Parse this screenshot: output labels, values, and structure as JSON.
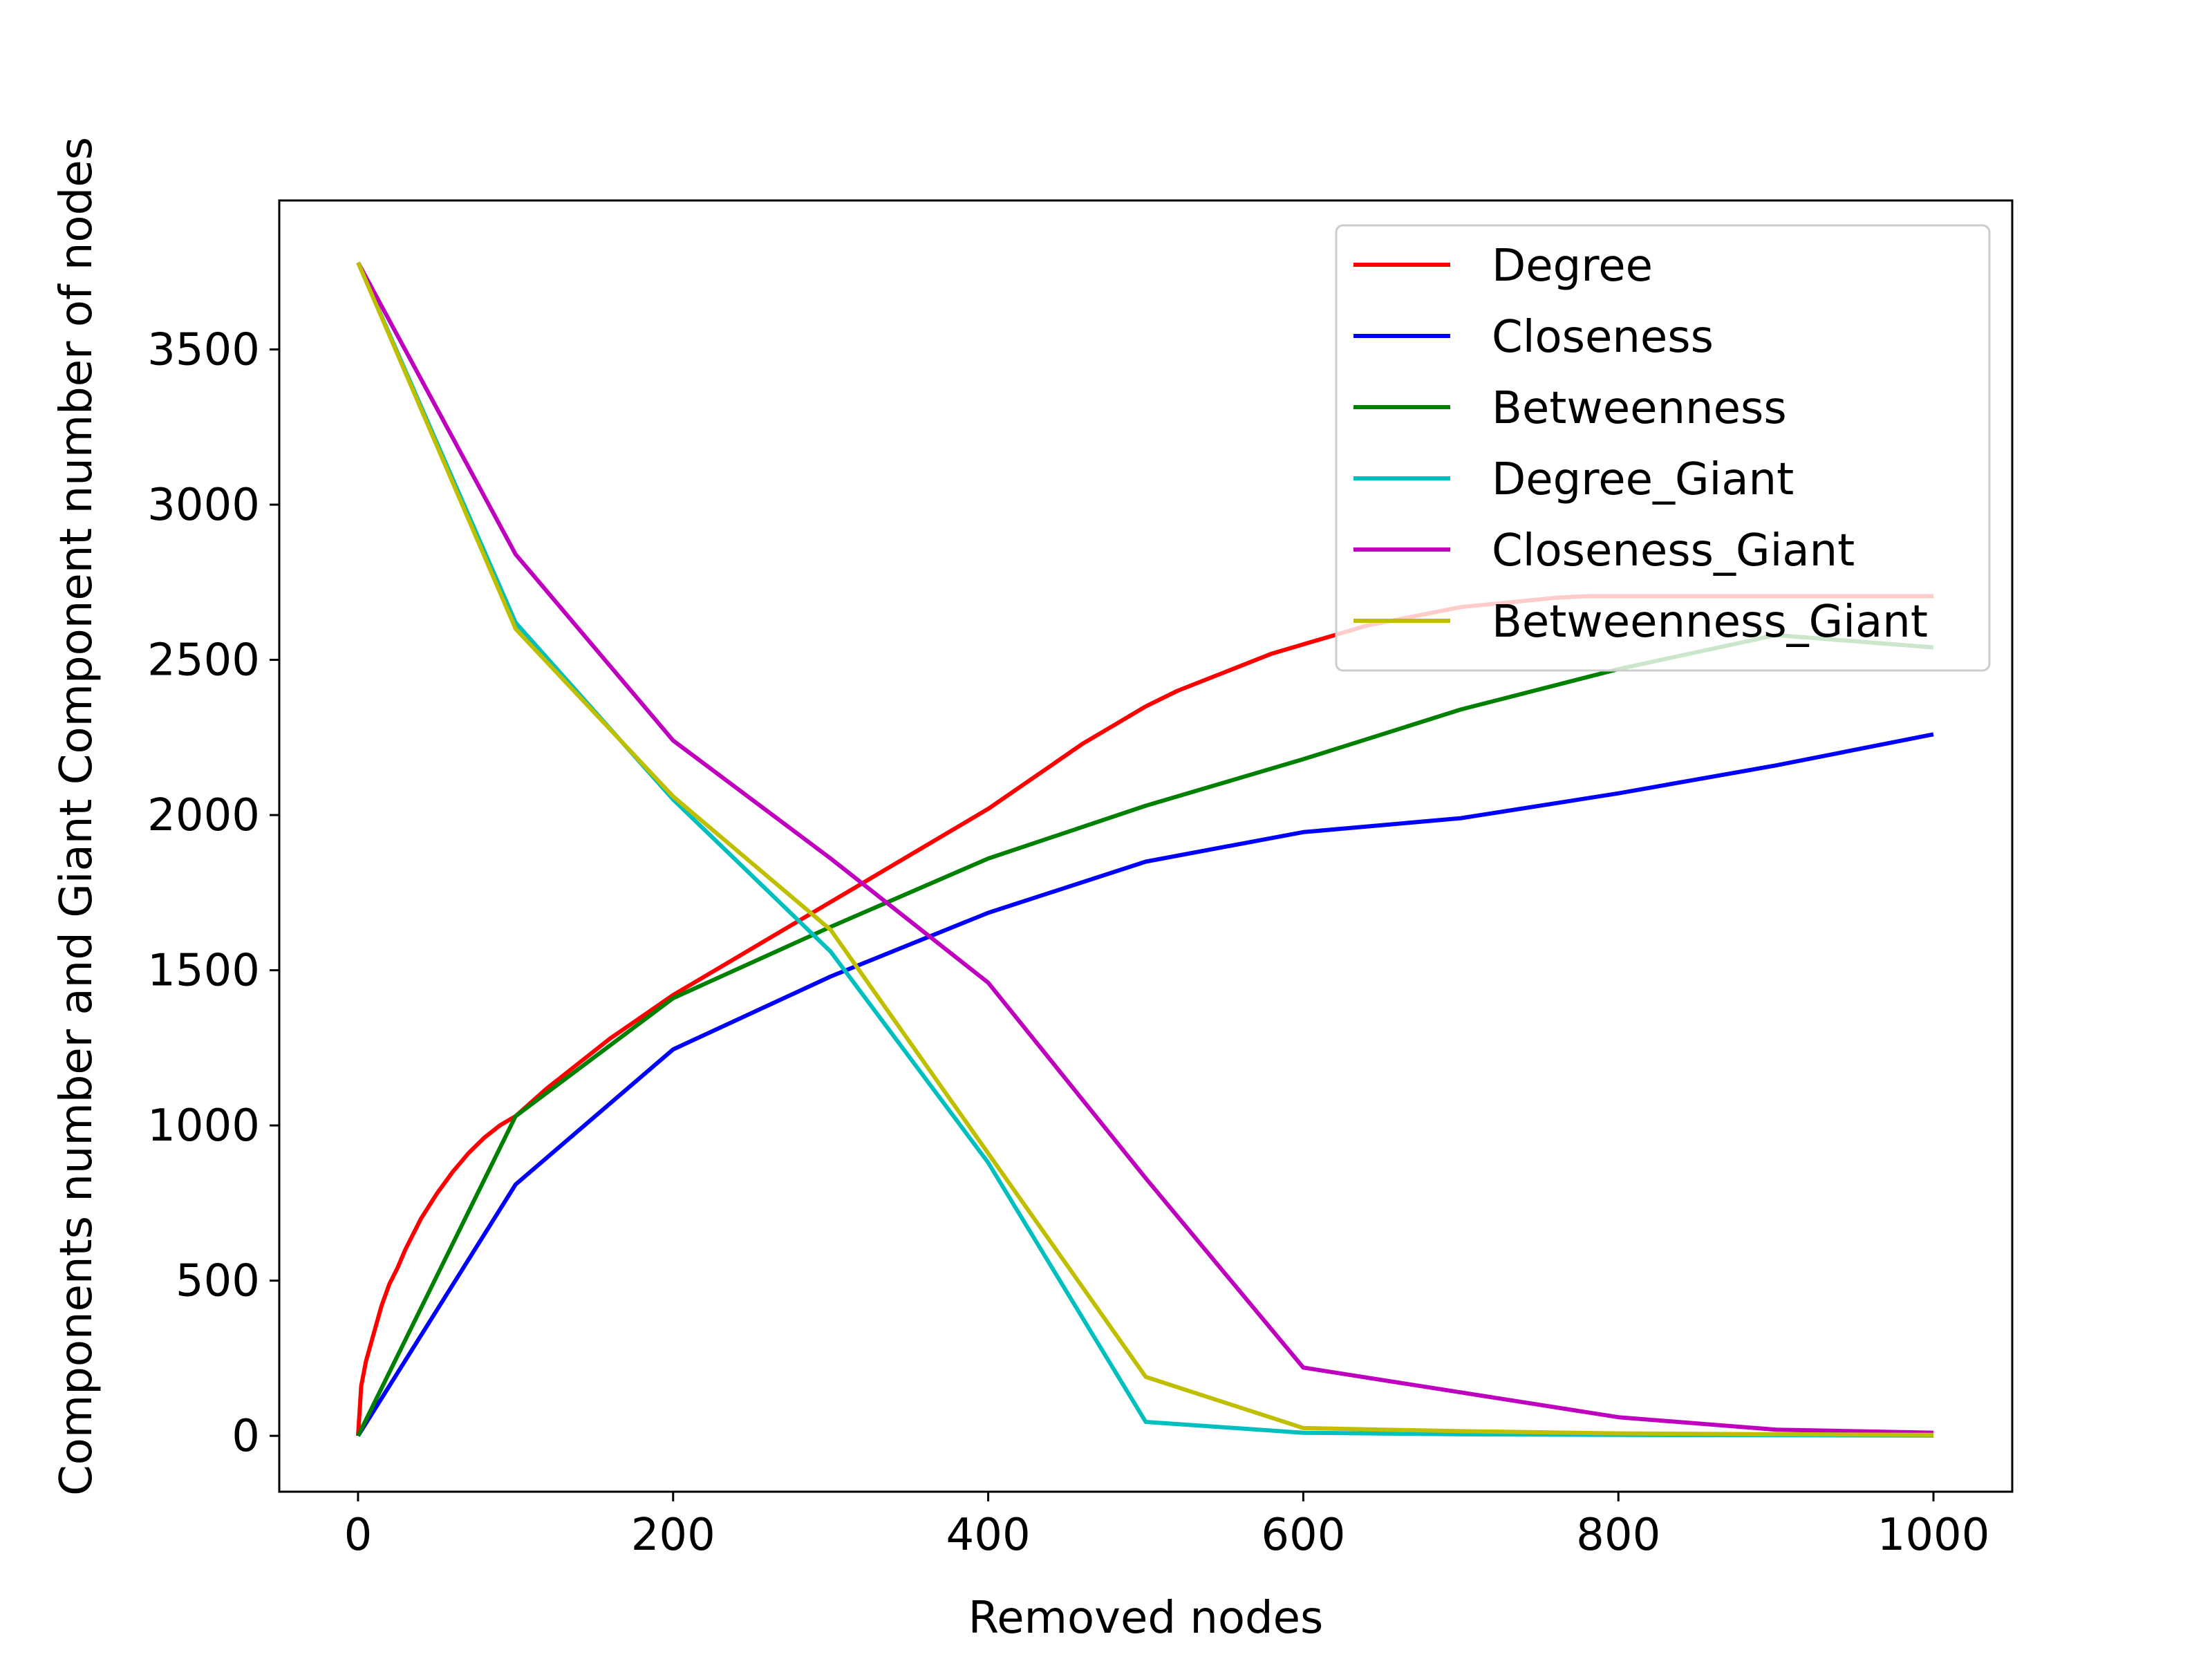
{
  "chart_data": {
    "type": "line",
    "title": "",
    "xlabel": "Removed nodes",
    "ylabel": "Components number and Giant Component number of nodes",
    "xlim": [
      -50,
      1050
    ],
    "ylim": [
      -180,
      3980
    ],
    "xticks": [
      0,
      200,
      400,
      600,
      800,
      1000
    ],
    "yticks": [
      0,
      500,
      1000,
      1500,
      2000,
      2500,
      3000,
      3500
    ],
    "grid": false,
    "legend_position": "top-right",
    "series": [
      {
        "name": "Degree",
        "color": "#ff0000",
        "x": [
          0,
          2,
          5,
          10,
          15,
          20,
          25,
          30,
          40,
          50,
          60,
          70,
          80,
          90,
          100,
          120,
          140,
          160,
          180,
          200,
          220,
          240,
          260,
          280,
          300,
          320,
          340,
          360,
          380,
          400,
          420,
          440,
          460,
          480,
          500,
          520,
          540,
          560,
          580,
          600,
          620,
          640,
          660,
          680,
          700,
          720,
          740,
          760,
          780,
          800,
          850,
          900,
          950,
          1000
        ],
        "y": [
          0,
          160,
          240,
          330,
          420,
          490,
          540,
          600,
          700,
          780,
          850,
          910,
          960,
          1000,
          1030,
          1120,
          1200,
          1280,
          1350,
          1420,
          1480,
          1540,
          1600,
          1660,
          1720,
          1780,
          1840,
          1900,
          1960,
          2020,
          2090,
          2160,
          2230,
          2290,
          2350,
          2400,
          2440,
          2480,
          2520,
          2550,
          2580,
          2610,
          2630,
          2650,
          2670,
          2680,
          2690,
          2700,
          2705,
          2705,
          2705,
          2705,
          2705,
          2705
        ]
      },
      {
        "name": "Closeness",
        "color": "#0000ff",
        "x": [
          0,
          100,
          200,
          300,
          400,
          500,
          600,
          700,
          800,
          900,
          1000
        ],
        "y": [
          0,
          810,
          1245,
          1480,
          1685,
          1850,
          1945,
          1990,
          2070,
          2160,
          2260
        ]
      },
      {
        "name": "Betweenness",
        "color": "#008000",
        "x": [
          0,
          100,
          200,
          300,
          400,
          500,
          600,
          700,
          800,
          900,
          1000
        ],
        "y": [
          0,
          1030,
          1410,
          1640,
          1860,
          2030,
          2180,
          2340,
          2470,
          2580,
          2540
        ]
      },
      {
        "name": "Degree_Giant",
        "color": "#00bfbf",
        "x": [
          0,
          100,
          200,
          300,
          400,
          500,
          600,
          700,
          800,
          900,
          1000
        ],
        "y": [
          3780,
          2620,
          2050,
          1560,
          880,
          45,
          10,
          5,
          3,
          2,
          1
        ]
      },
      {
        "name": "Closeness_Giant",
        "color": "#bf00bf",
        "x": [
          0,
          100,
          200,
          300,
          400,
          500,
          600,
          700,
          800,
          900,
          1000
        ],
        "y": [
          3780,
          2840,
          2240,
          1860,
          1460,
          830,
          220,
          140,
          60,
          20,
          10
        ]
      },
      {
        "name": "Betweenness_Giant",
        "color": "#bfbf00",
        "x": [
          0,
          100,
          200,
          300,
          400,
          500,
          600,
          700,
          800,
          900,
          1000
        ],
        "y": [
          3780,
          2600,
          2060,
          1630,
          910,
          190,
          25,
          15,
          8,
          5,
          3
        ]
      }
    ]
  }
}
